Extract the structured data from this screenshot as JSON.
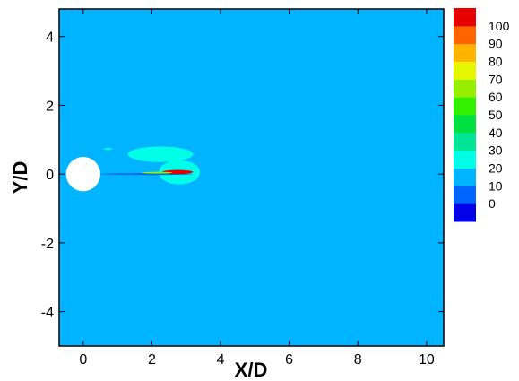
{
  "chart_data": {
    "type": "heatmap",
    "xlabel": "X/D",
    "ylabel": "Y/D",
    "xlim": [
      -0.7,
      10.5
    ],
    "ylim": [
      -5,
      4.8
    ],
    "x_ticks": [
      0,
      2,
      4,
      6,
      8,
      10
    ],
    "x_tick_labels": [
      "0",
      "2",
      "4",
      "6",
      "8",
      "10"
    ],
    "y_ticks": [
      -4,
      -2,
      0,
      2,
      4
    ],
    "y_tick_labels": [
      "-4",
      "-2",
      "0",
      "2",
      "4"
    ],
    "background_level": 10,
    "cylinder": {
      "center": [
        0,
        0
      ],
      "diameter": 1
    },
    "wake_features": [
      {
        "kind": "upper-shear-band",
        "level": 20,
        "x_range": [
          1.3,
          3.2
        ],
        "y_range": [
          0.35,
          0.8
        ]
      },
      {
        "kind": "small-upstream-patch",
        "level": 20,
        "x_range": [
          0.6,
          0.85
        ],
        "y_range": [
          0.7,
          0.76
        ]
      },
      {
        "kind": "near-wake-streak",
        "level": 20,
        "x_range": [
          2.2,
          3.4
        ],
        "y_range": [
          -0.3,
          0.4
        ]
      },
      {
        "kind": "centerline-zero",
        "level": 0,
        "x_range": [
          0.5,
          3.2
        ],
        "y_range": [
          -0.02,
          0.02
        ]
      },
      {
        "kind": "centerline-peak",
        "level": 100,
        "x_range": [
          2.3,
          3.2
        ],
        "y_range": [
          0.0,
          0.12
        ]
      },
      {
        "kind": "centerline-mid",
        "level": 60,
        "x_range": [
          1.7,
          2.6
        ],
        "y_range": [
          0.02,
          0.06
        ]
      }
    ],
    "colorbar": {
      "levels": [
        0,
        10,
        20,
        30,
        40,
        50,
        60,
        70,
        80,
        90,
        100
      ],
      "labels": [
        "0",
        "10",
        "20",
        "30",
        "40",
        "50",
        "60",
        "70",
        "80",
        "90",
        "100"
      ],
      "colors": [
        "#0000e8",
        "#0064ff",
        "#00b4ff",
        "#00ffe6",
        "#00e696",
        "#00e040",
        "#32f000",
        "#96ee00",
        "#e6f500",
        "#ffb400",
        "#ff6400",
        "#e80000"
      ]
    }
  }
}
